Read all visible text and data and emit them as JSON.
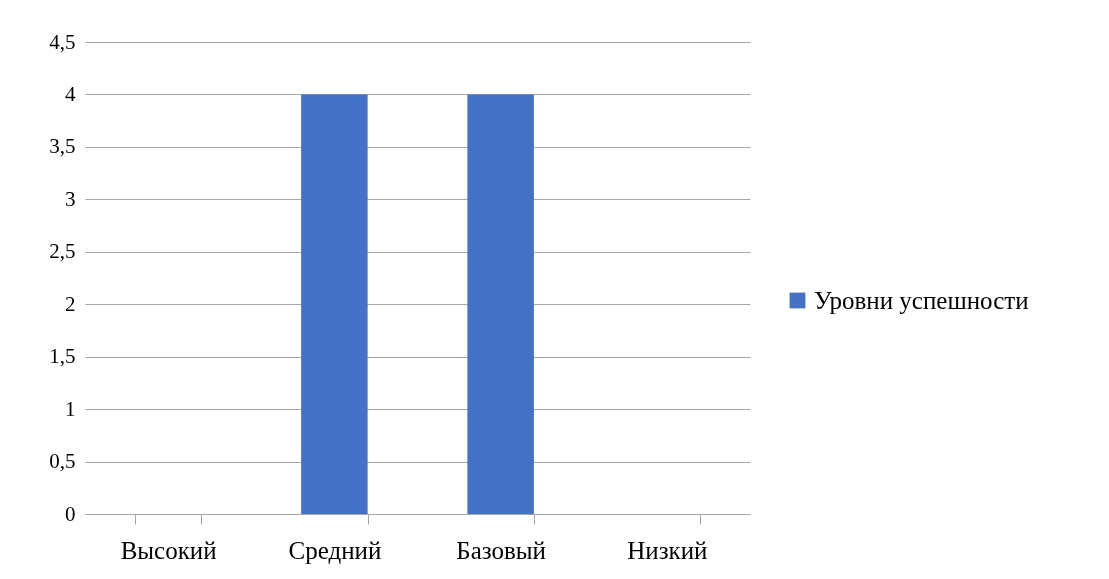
{
  "chart_data": {
    "type": "bar",
    "categories": [
      "Высокий",
      "Средний",
      "Базовый",
      "Низкий"
    ],
    "series": [
      {
        "name": "Уровни успешности",
        "color": "#4472c4",
        "values": [
          0,
          4,
          4,
          0
        ]
      }
    ],
    "ylim": [
      0,
      4.5
    ],
    "yticks": [
      0,
      {
        "value": 0.5,
        "label": "0,5"
      },
      1,
      {
        "value": 1.5,
        "label": "1,5"
      },
      2,
      {
        "value": 2.5,
        "label": "2,5"
      },
      3,
      {
        "value": 3.5,
        "label": "3,5"
      },
      4,
      {
        "value": 4.5,
        "label": "4,5"
      }
    ],
    "grid": "y",
    "legend": "right"
  }
}
